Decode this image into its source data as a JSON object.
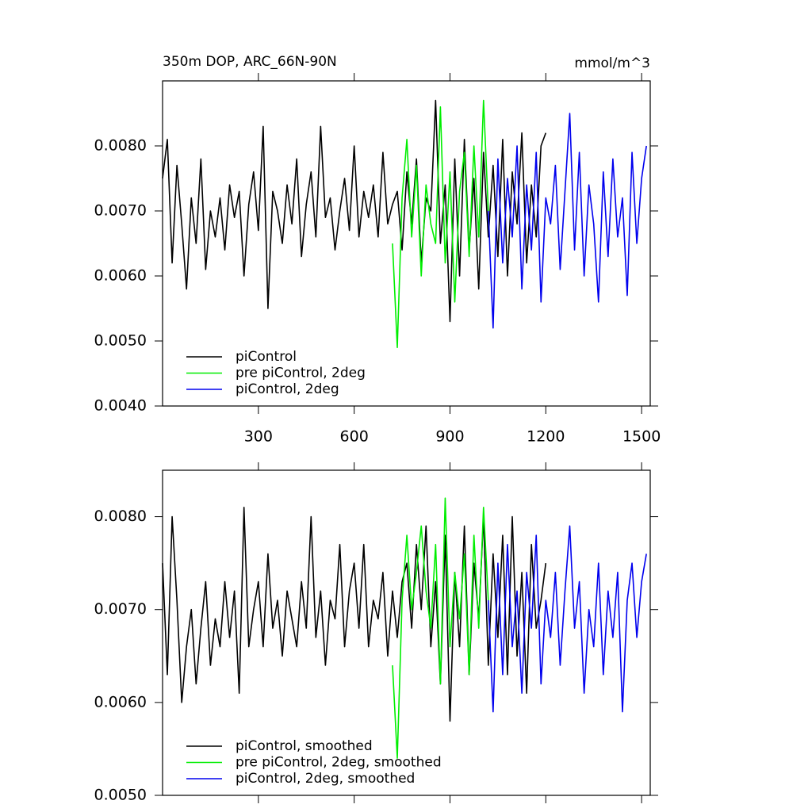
{
  "chart_data": [
    {
      "type": "line",
      "title": "350m DOP, ARC_66N-90N",
      "units": "mmol/m^3",
      "xlim": [
        0,
        1527
      ],
      "ylim": [
        0.004,
        0.009
      ],
      "xticks": [
        300,
        600,
        900,
        1200,
        1500
      ],
      "show_xtick_labels": true,
      "yticks": [
        {
          "value": 0.004,
          "label": "0.0040"
        },
        {
          "value": 0.005,
          "label": "0.0050"
        },
        {
          "value": 0.006,
          "label": "0.0060"
        },
        {
          "value": 0.007,
          "label": "0.0070"
        },
        {
          "value": 0.008,
          "label": "0.0080"
        }
      ],
      "legend": "lower left",
      "series": [
        {
          "name": "piControl",
          "color": "#000000",
          "x": [
            0,
            15,
            30,
            45,
            60,
            75,
            90,
            105,
            120,
            135,
            150,
            165,
            180,
            195,
            210,
            225,
            240,
            255,
            270,
            285,
            300,
            315,
            330,
            345,
            360,
            375,
            390,
            405,
            420,
            435,
            450,
            465,
            480,
            495,
            510,
            525,
            540,
            555,
            570,
            585,
            600,
            615,
            630,
            645,
            660,
            675,
            690,
            705,
            720,
            735,
            750,
            765,
            780,
            795,
            810,
            825,
            840,
            855,
            870,
            885,
            900,
            915,
            930,
            945,
            960,
            975,
            990,
            1005,
            1020,
            1035,
            1050,
            1065,
            1080,
            1095,
            1110,
            1125,
            1140,
            1155,
            1170,
            1185,
            1200
          ],
          "values": [
            0.0075,
            0.0081,
            0.0062,
            0.0077,
            0.0068,
            0.0058,
            0.0072,
            0.0065,
            0.0078,
            0.0061,
            0.007,
            0.0066,
            0.0072,
            0.0064,
            0.0074,
            0.0069,
            0.0073,
            0.006,
            0.0071,
            0.0076,
            0.0067,
            0.0083,
            0.0055,
            0.0073,
            0.007,
            0.0065,
            0.0074,
            0.0068,
            0.0078,
            0.0063,
            0.0071,
            0.0076,
            0.0066,
            0.0083,
            0.0069,
            0.0072,
            0.0064,
            0.007,
            0.0075,
            0.0067,
            0.008,
            0.0066,
            0.0073,
            0.0069,
            0.0074,
            0.0066,
            0.0079,
            0.0068,
            0.0071,
            0.0073,
            0.0064,
            0.0076,
            0.0068,
            0.0078,
            0.0062,
            0.0072,
            0.007,
            0.0087,
            0.0065,
            0.0074,
            0.0053,
            0.0078,
            0.006,
            0.0081,
            0.0064,
            0.0075,
            0.0058,
            0.0079,
            0.0066,
            0.0077,
            0.0063,
            0.0081,
            0.006,
            0.0076,
            0.0068,
            0.0082,
            0.0062,
            0.0074,
            0.0066,
            0.008,
            0.0082
          ]
        },
        {
          "name": "pre piControl, 2deg",
          "color": "#00ee00",
          "x": [
            720,
            735,
            750,
            765,
            780,
            795,
            810,
            825,
            840,
            855,
            870,
            885,
            900,
            915,
            930,
            945,
            960,
            975,
            990,
            1005,
            1020
          ],
          "values": [
            0.0065,
            0.0049,
            0.0072,
            0.0081,
            0.0066,
            0.0077,
            0.006,
            0.0074,
            0.0068,
            0.0065,
            0.0086,
            0.0062,
            0.0076,
            0.0056,
            0.0073,
            0.0079,
            0.0063,
            0.008,
            0.0066,
            0.0087,
            0.007
          ]
        },
        {
          "name": "piControl, 2deg",
          "color": "#0000ee",
          "x": [
            1020,
            1035,
            1050,
            1065,
            1080,
            1095,
            1110,
            1125,
            1140,
            1155,
            1170,
            1185,
            1200,
            1215,
            1230,
            1245,
            1260,
            1275,
            1290,
            1305,
            1320,
            1335,
            1350,
            1365,
            1380,
            1395,
            1410,
            1425,
            1440,
            1455,
            1470,
            1485,
            1500,
            1515
          ],
          "values": [
            0.007,
            0.0052,
            0.0078,
            0.0062,
            0.0075,
            0.0066,
            0.008,
            0.0058,
            0.0074,
            0.0064,
            0.0079,
            0.0056,
            0.0072,
            0.0068,
            0.0077,
            0.0061,
            0.0073,
            0.0085,
            0.0064,
            0.0079,
            0.006,
            0.0074,
            0.0068,
            0.0056,
            0.0076,
            0.0063,
            0.0078,
            0.0066,
            0.0072,
            0.0057,
            0.0079,
            0.0065,
            0.0075,
            0.008
          ]
        }
      ]
    },
    {
      "type": "line",
      "xlim": [
        0,
        1527
      ],
      "ylim": [
        0.005,
        0.0085
      ],
      "xticks": [
        300,
        600,
        900,
        1200,
        1500
      ],
      "show_xtick_labels": false,
      "yticks": [
        {
          "value": 0.005,
          "label": "0.0050"
        },
        {
          "value": 0.006,
          "label": "0.0060"
        },
        {
          "value": 0.007,
          "label": "0.0070"
        },
        {
          "value": 0.008,
          "label": "0.0080"
        }
      ],
      "legend": "lower left",
      "series": [
        {
          "name": "piControl, smoothed",
          "color": "#000000",
          "x": [
            0,
            15,
            30,
            45,
            60,
            75,
            90,
            105,
            120,
            135,
            150,
            165,
            180,
            195,
            210,
            225,
            240,
            255,
            270,
            285,
            300,
            315,
            330,
            345,
            360,
            375,
            390,
            405,
            420,
            435,
            450,
            465,
            480,
            495,
            510,
            525,
            540,
            555,
            570,
            585,
            600,
            615,
            630,
            645,
            660,
            675,
            690,
            705,
            720,
            735,
            750,
            765,
            780,
            795,
            810,
            825,
            840,
            855,
            870,
            885,
            900,
            915,
            930,
            945,
            960,
            975,
            990,
            1005,
            1020,
            1035,
            1050,
            1065,
            1080,
            1095,
            1110,
            1125,
            1140,
            1155,
            1170,
            1185,
            1200
          ],
          "values": [
            0.0075,
            0.0063,
            0.008,
            0.0071,
            0.006,
            0.0066,
            0.007,
            0.0062,
            0.0068,
            0.0073,
            0.0064,
            0.0069,
            0.0066,
            0.0073,
            0.0067,
            0.0072,
            0.0061,
            0.0081,
            0.0066,
            0.007,
            0.0073,
            0.0066,
            0.0076,
            0.0068,
            0.0071,
            0.0065,
            0.0072,
            0.0069,
            0.0066,
            0.0073,
            0.0068,
            0.008,
            0.0067,
            0.0072,
            0.0064,
            0.0071,
            0.0069,
            0.0077,
            0.0066,
            0.0072,
            0.0075,
            0.0068,
            0.0077,
            0.0066,
            0.0071,
            0.0069,
            0.0074,
            0.0065,
            0.0072,
            0.0067,
            0.0073,
            0.0075,
            0.0068,
            0.0077,
            0.007,
            0.0079,
            0.0066,
            0.0073,
            0.0062,
            0.0078,
            0.0058,
            0.0074,
            0.0066,
            0.0079,
            0.0063,
            0.0075,
            0.0069,
            0.008,
            0.0064,
            0.0076,
            0.0067,
            0.0078,
            0.0063,
            0.008,
            0.0065,
            0.0074,
            0.0061,
            0.0077,
            0.0068,
            0.0071,
            0.0075
          ]
        },
        {
          "name": "pre piControl, 2deg, smoothed",
          "color": "#00ee00",
          "x": [
            720,
            735,
            750,
            765,
            780,
            795,
            810,
            825,
            840,
            855,
            870,
            885,
            900,
            915,
            930,
            945,
            960,
            975,
            990,
            1005,
            1020
          ],
          "values": [
            0.0064,
            0.0054,
            0.0071,
            0.0078,
            0.007,
            0.0074,
            0.0079,
            0.0072,
            0.0068,
            0.0077,
            0.0062,
            0.0082,
            0.0066,
            0.0074,
            0.0069,
            0.0076,
            0.0063,
            0.0078,
            0.0068,
            0.0081,
            0.0071
          ]
        },
        {
          "name": "piControl, 2deg, smoothed",
          "color": "#0000ee",
          "x": [
            1020,
            1035,
            1050,
            1065,
            1080,
            1095,
            1110,
            1125,
            1140,
            1155,
            1170,
            1185,
            1200,
            1215,
            1230,
            1245,
            1260,
            1275,
            1290,
            1305,
            1320,
            1335,
            1350,
            1365,
            1380,
            1395,
            1410,
            1425,
            1440,
            1455,
            1470,
            1485,
            1500,
            1515
          ],
          "values": [
            0.0071,
            0.0059,
            0.0075,
            0.0063,
            0.0077,
            0.0066,
            0.0072,
            0.0061,
            0.0074,
            0.0068,
            0.0078,
            0.0062,
            0.0071,
            0.0067,
            0.0074,
            0.0064,
            0.0072,
            0.0079,
            0.0068,
            0.0073,
            0.0061,
            0.007,
            0.0066,
            0.0075,
            0.0063,
            0.0072,
            0.0067,
            0.0074,
            0.0059,
            0.0071,
            0.0075,
            0.0067,
            0.0073,
            0.0076
          ]
        }
      ]
    }
  ]
}
